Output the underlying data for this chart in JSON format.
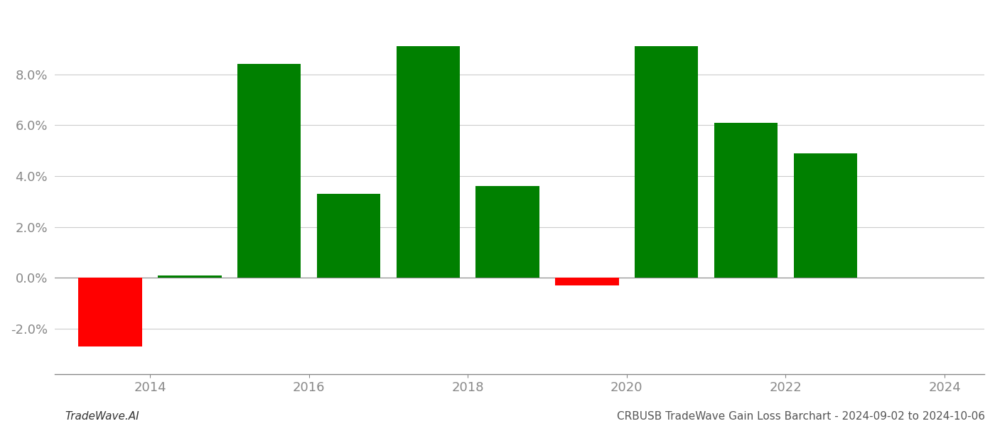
{
  "years": [
    2013.5,
    2014.5,
    2015.5,
    2016.5,
    2017.5,
    2018.5,
    2019.5,
    2020.5,
    2021.5,
    2022.5
  ],
  "values": [
    -0.027,
    0.001,
    0.084,
    0.033,
    0.091,
    0.036,
    -0.003,
    0.091,
    0.061,
    0.049
  ],
  "colors": [
    "#ff0000",
    "#008000",
    "#008000",
    "#008000",
    "#008000",
    "#008000",
    "#ff0000",
    "#008000",
    "#008000",
    "#008000"
  ],
  "bar_width": 0.8,
  "xlim": [
    2012.8,
    2024.5
  ],
  "ylim": [
    -0.038,
    0.105
  ],
  "xticks": [
    2014,
    2016,
    2018,
    2020,
    2022,
    2024
  ],
  "yticks": [
    -0.02,
    0.0,
    0.02,
    0.04,
    0.06,
    0.08
  ],
  "grid_color": "#cccccc",
  "axis_color": "#888888",
  "tick_label_color": "#888888",
  "background_color": "#ffffff",
  "footer_left": "TradeWave.AI",
  "footer_right": "CRBUSB TradeWave Gain Loss Barchart - 2024-09-02 to 2024-10-06",
  "footer_fontsize": 11
}
